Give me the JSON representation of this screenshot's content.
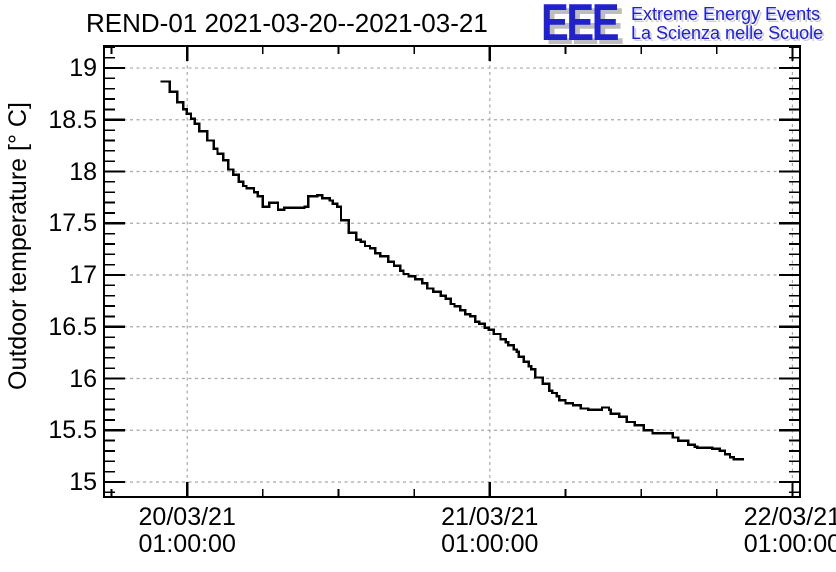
{
  "header": {
    "title": "REND-01 2021-03-20--2021-03-21"
  },
  "logo": {
    "acronym": "EEE",
    "line1": "Extreme Energy Events",
    "line2": "La Scienza nelle Scuole",
    "blue": "#2222cc",
    "shadow_gray": "#bdbdbd"
  },
  "chart_data": {
    "type": "line",
    "subtype": "step-histogram",
    "title": "REND-01 2021-03-20--2021-03-21",
    "xlabel": "",
    "ylabel": "Outdoor temperature [° C]",
    "line_color": "#000000",
    "grid": "dashed-gray-on-majors",
    "grid_color": "#a8a8a8",
    "x_axis": {
      "unit": "hours since 20/03/21 00:00:00",
      "min": -5.6,
      "max": 49.6,
      "major_ticks": [
        1,
        25,
        49
      ],
      "minor_step": 6,
      "tick_labels": [
        {
          "t": 1,
          "date": "20/03/21",
          "time": "01:00:00"
        },
        {
          "t": 25,
          "date": "21/03/21",
          "time": "01:00:00"
        },
        {
          "t": 49,
          "date": "22/03/21",
          "time": "01:00:00"
        }
      ]
    },
    "y_axis": {
      "min": 14.855,
      "max": 19.213,
      "major_step": 0.5,
      "minor_step": 0.1,
      "major_tick_values": [
        15,
        15.5,
        16,
        16.5,
        17,
        17.5,
        18,
        18.5,
        19
      ]
    },
    "series": [
      {
        "name": "outdoor-temperature",
        "t_end": 45.15,
        "points": [
          [
            -1.1,
            18.87
          ],
          [
            -0.4,
            18.77
          ],
          [
            0.2,
            18.67
          ],
          [
            0.7,
            18.6
          ],
          [
            0.95,
            18.56
          ],
          [
            1.3,
            18.51
          ],
          [
            1.6,
            18.46
          ],
          [
            1.95,
            18.39
          ],
          [
            2.6,
            18.3
          ],
          [
            3.1,
            18.22
          ],
          [
            3.4,
            18.17
          ],
          [
            3.85,
            18.11
          ],
          [
            4.25,
            18.02
          ],
          [
            4.65,
            17.97
          ],
          [
            5.1,
            17.9
          ],
          [
            5.45,
            17.86
          ],
          [
            5.7,
            17.84
          ],
          [
            6.3,
            17.8
          ],
          [
            6.6,
            17.76
          ],
          [
            7.0,
            17.66
          ],
          [
            7.5,
            17.7
          ],
          [
            8.2,
            17.63
          ],
          [
            8.7,
            17.65
          ],
          [
            10.3,
            17.66
          ],
          [
            10.6,
            17.76
          ],
          [
            11.3,
            17.77
          ],
          [
            11.7,
            17.74
          ],
          [
            12.3,
            17.72
          ],
          [
            12.55,
            17.69
          ],
          [
            12.9,
            17.66
          ],
          [
            13.2,
            17.53
          ],
          [
            13.8,
            17.41
          ],
          [
            14.4,
            17.34
          ],
          [
            14.75,
            17.32
          ],
          [
            15.1,
            17.28
          ],
          [
            15.5,
            17.26
          ],
          [
            15.9,
            17.21
          ],
          [
            16.3,
            17.18
          ],
          [
            16.95,
            17.13
          ],
          [
            17.4,
            17.09
          ],
          [
            17.9,
            17.04
          ],
          [
            18.15,
            17.01
          ],
          [
            18.55,
            16.99
          ],
          [
            19.1,
            16.96
          ],
          [
            19.65,
            16.92
          ],
          [
            20.05,
            16.87
          ],
          [
            20.5,
            16.84
          ],
          [
            21.1,
            16.8
          ],
          [
            21.5,
            16.77
          ],
          [
            21.9,
            16.72
          ],
          [
            22.2,
            16.7
          ],
          [
            22.65,
            16.66
          ],
          [
            23.05,
            16.62
          ],
          [
            23.45,
            16.6
          ],
          [
            23.85,
            16.55
          ],
          [
            24.15,
            16.53
          ],
          [
            24.6,
            16.49
          ],
          [
            24.9,
            16.47
          ],
          [
            25.3,
            16.43
          ],
          [
            25.85,
            16.38
          ],
          [
            26.25,
            16.35
          ],
          [
            26.45,
            16.32
          ],
          [
            26.9,
            16.28
          ],
          [
            27.15,
            16.26
          ],
          [
            27.3,
            16.21
          ],
          [
            27.7,
            16.16
          ],
          [
            28.1,
            16.12
          ],
          [
            28.3,
            16.09
          ],
          [
            28.6,
            16.01
          ],
          [
            29.2,
            15.95
          ],
          [
            29.7,
            15.88
          ],
          [
            29.95,
            15.86
          ],
          [
            30.3,
            15.83
          ],
          [
            30.5,
            15.79
          ],
          [
            31.0,
            15.76
          ],
          [
            31.6,
            15.74
          ],
          [
            32.2,
            15.71
          ],
          [
            32.8,
            15.7
          ],
          [
            33.9,
            15.72
          ],
          [
            34.45,
            15.7
          ],
          [
            34.6,
            15.66
          ],
          [
            35.25,
            15.63
          ],
          [
            35.85,
            15.58
          ],
          [
            36.5,
            15.55
          ],
          [
            37.2,
            15.5
          ],
          [
            37.9,
            15.47
          ],
          [
            39.5,
            15.43
          ],
          [
            39.95,
            15.4
          ],
          [
            40.75,
            15.36
          ],
          [
            41.25,
            15.34
          ],
          [
            41.45,
            15.33
          ],
          [
            42.65,
            15.32
          ],
          [
            43.25,
            15.3
          ],
          [
            43.65,
            15.27
          ],
          [
            44.05,
            15.24
          ],
          [
            44.35,
            15.22
          ]
        ]
      }
    ]
  }
}
